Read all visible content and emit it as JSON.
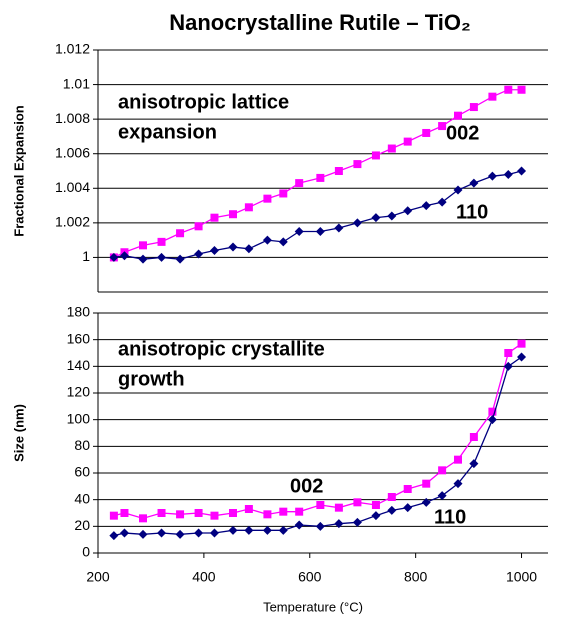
{
  "chart_data": [
    {
      "type": "line",
      "title": "Nanocrystalline Rutile – TiO₂",
      "ylabel": "Fractional Expansion",
      "x": [
        230,
        250,
        285,
        320,
        355,
        390,
        420,
        455,
        485,
        520,
        550,
        580,
        620,
        655,
        690,
        725,
        755,
        785,
        820,
        850,
        880,
        910,
        945,
        975,
        1000
      ],
      "series": [
        {
          "name": "002",
          "color": "#ff00ff",
          "marker": "square",
          "values": [
            1.0,
            1.0003,
            1.0007,
            1.0009,
            1.0014,
            1.0018,
            1.0023,
            1.0025,
            1.0029,
            1.0034,
            1.0037,
            1.0043,
            1.0046,
            1.005,
            1.0054,
            1.0059,
            1.0063,
            1.0067,
            1.0072,
            1.0076,
            1.0082,
            1.0087,
            1.0093,
            1.0097,
            1.0097
          ]
        },
        {
          "name": "110",
          "color": "#000080",
          "marker": "diamond",
          "values": [
            1.0,
            1.0001,
            0.9999,
            1.0,
            0.9999,
            1.0002,
            1.0004,
            1.0006,
            1.0005,
            1.001,
            1.0009,
            1.0015,
            1.0015,
            1.0017,
            1.002,
            1.0023,
            1.0024,
            1.0027,
            1.003,
            1.0032,
            1.0039,
            1.0043,
            1.0047,
            1.0048,
            1.005
          ]
        }
      ],
      "annotations": [
        {
          "text": "anisotropic lattice",
          "color": "#1515b0"
        },
        {
          "text": "expansion",
          "color": "#1515b0"
        },
        {
          "text": "002",
          "color": "#ff00ff"
        },
        {
          "text": "110",
          "color": "#000060"
        }
      ],
      "xlim": [
        200,
        1050
      ],
      "ylim": [
        0.998,
        1.012
      ],
      "yticks": [
        1,
        1.002,
        1.004,
        1.006,
        1.008,
        1.01,
        1.012
      ],
      "grid": true
    },
    {
      "type": "line",
      "ylabel": "Size (nm)",
      "xlabel": "Temperature (°C)",
      "x": [
        230,
        250,
        285,
        320,
        355,
        390,
        420,
        455,
        485,
        520,
        550,
        580,
        620,
        655,
        690,
        725,
        755,
        785,
        820,
        850,
        880,
        910,
        945,
        975,
        1000
      ],
      "series": [
        {
          "name": "002",
          "color": "#ff00ff",
          "marker": "square",
          "values": [
            28,
            30,
            26,
            30,
            29,
            30,
            28,
            30,
            33,
            29,
            31,
            31,
            36,
            34,
            38,
            36,
            42,
            48,
            52,
            62,
            70,
            87,
            106,
            150,
            157
          ]
        },
        {
          "name": "110",
          "color": "#000080",
          "marker": "diamond",
          "values": [
            13,
            15,
            14,
            15,
            14,
            15,
            15,
            17,
            17,
            17,
            17,
            21,
            20,
            22,
            23,
            28,
            32,
            34,
            38,
            43,
            52,
            67,
            100,
            140,
            147
          ]
        }
      ],
      "annotations": [
        {
          "text": "anisotropic crystallite",
          "color": "#1515b0"
        },
        {
          "text": "growth",
          "color": "#1515b0"
        },
        {
          "text": "002",
          "color": "#ff00ff"
        },
        {
          "text": "110",
          "color": "#000060"
        }
      ],
      "xlim": [
        200,
        1050
      ],
      "xticks": [
        200,
        400,
        600,
        800,
        1000
      ],
      "ylim": [
        0,
        180
      ],
      "yticks": [
        0,
        20,
        40,
        60,
        80,
        100,
        120,
        140,
        160,
        180
      ],
      "grid": true
    }
  ]
}
